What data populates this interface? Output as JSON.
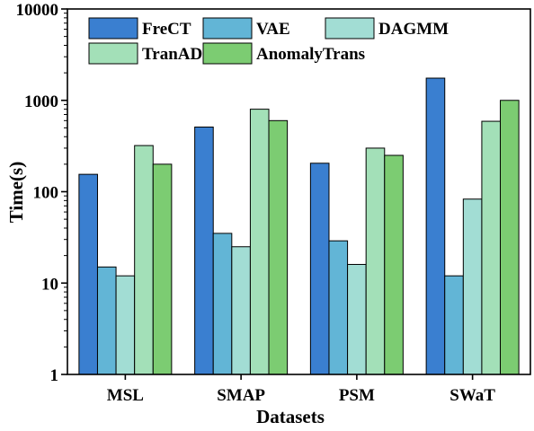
{
  "chart_data": {
    "type": "bar",
    "xlabel": "Datasets",
    "ylabel": "Time(s)",
    "yscale": "log",
    "ylim": [
      1,
      10000
    ],
    "yticks": [
      1,
      10,
      100,
      1000,
      10000
    ],
    "ytick_labels": [
      "1",
      "10",
      "100",
      "1000",
      "10000"
    ],
    "categories": [
      "MSL",
      "SMAP",
      "PSM",
      "SWaT"
    ],
    "legend_position": "top-left",
    "series": [
      {
        "name": "FreCT",
        "color": "#3a7fd0",
        "values": [
          155,
          510,
          205,
          1750
        ]
      },
      {
        "name": "VAE",
        "color": "#62b5d6",
        "values": [
          15,
          35,
          29,
          12
        ]
      },
      {
        "name": "DAGMM",
        "color": "#a2ddd4",
        "values": [
          12,
          25,
          16,
          83
        ]
      },
      {
        "name": "TranAD",
        "color": "#a3e0b8",
        "values": [
          320,
          800,
          300,
          590
        ]
      },
      {
        "name": "AnomalyTrans",
        "color": "#7ccc72",
        "values": [
          200,
          600,
          250,
          1000
        ]
      }
    ]
  }
}
